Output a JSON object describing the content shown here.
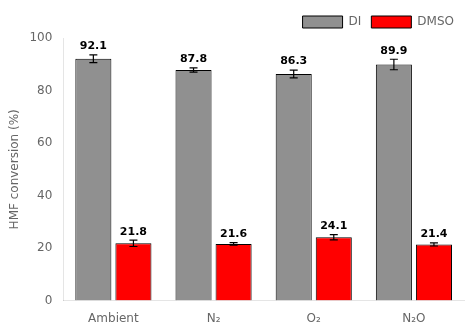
{
  "chart_data": {
    "type": "bar",
    "categories": [
      "Ambient",
      "N₂",
      "O₂",
      "N₂O"
    ],
    "ylabel": "HMF conversion (%)",
    "ylim": [
      0,
      100
    ],
    "yticks": [
      0,
      20,
      40,
      60,
      80,
      100
    ],
    "grid": false,
    "legend": "upper right",
    "data_labels": true,
    "series": [
      {
        "name": "DI",
        "color": "#909090",
        "values": [
          92.1,
          87.8,
          86.3,
          89.9
        ],
        "errors": [
          1.5,
          0.8,
          1.5,
          2.0
        ]
      },
      {
        "name": "DMSO",
        "color": "#ff0000",
        "values": [
          21.8,
          21.6,
          24.1,
          21.4
        ],
        "errors": [
          1.2,
          0.5,
          1.0,
          0.6
        ]
      }
    ]
  }
}
